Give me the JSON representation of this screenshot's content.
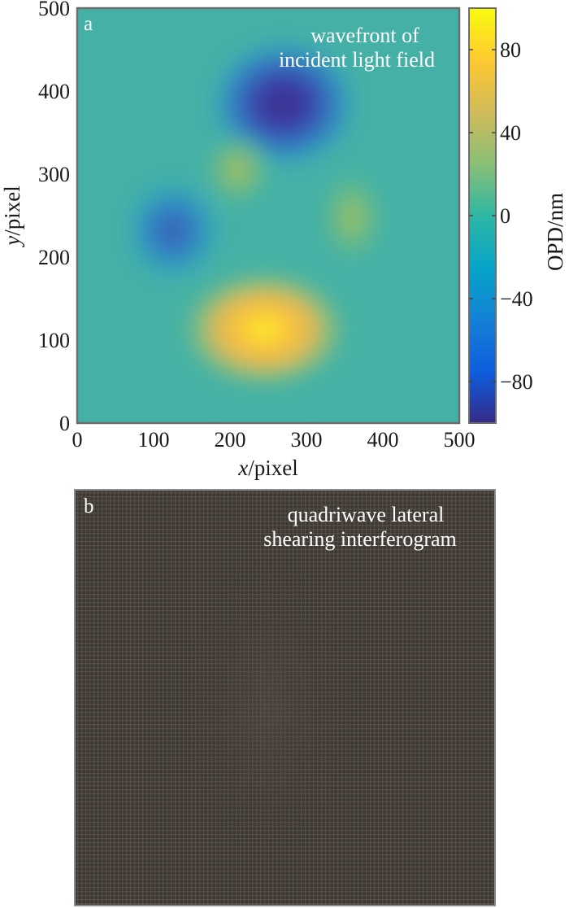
{
  "chart_data": [
    {
      "type": "heatmap",
      "panel_label": "a",
      "annotation": [
        "wavefront of",
        "incident light field"
      ],
      "xlabel_var": "x",
      "xlabel_unit": "/pixel",
      "ylabel_var": "y",
      "ylabel_unit": "/pixel",
      "xlim": [
        0,
        500
      ],
      "ylim": [
        0,
        500
      ],
      "xticks": [
        "0",
        "100",
        "200",
        "300",
        "400",
        "500"
      ],
      "yticks": [
        "0",
        "100",
        "200",
        "300",
        "400",
        "500"
      ],
      "colorbar": {
        "label": "OPD/nm",
        "range": [
          -100,
          100
        ],
        "ticks": [
          {
            "value": 80,
            "label": "80"
          },
          {
            "value": 40,
            "label": "40"
          },
          {
            "value": 0,
            "label": "0"
          },
          {
            "value": -40,
            "label": "−40"
          },
          {
            "value": -80,
            "label": "−80"
          }
        ],
        "colormap": "parula"
      },
      "features": [
        {
          "x": 245,
          "y": 113,
          "value": 100
        },
        {
          "x": 270,
          "y": 385,
          "value": -85
        },
        {
          "x": 125,
          "y": 232,
          "value": -48
        },
        {
          "x": 210,
          "y": 305,
          "value": 38
        },
        {
          "x": 360,
          "y": 248,
          "value": 32
        }
      ]
    },
    {
      "type": "heatmap",
      "panel_label": "b",
      "annotation": [
        "quadriwave lateral",
        "shearing interferogram"
      ],
      "grid": "fine crossed fringe pattern"
    }
  ]
}
